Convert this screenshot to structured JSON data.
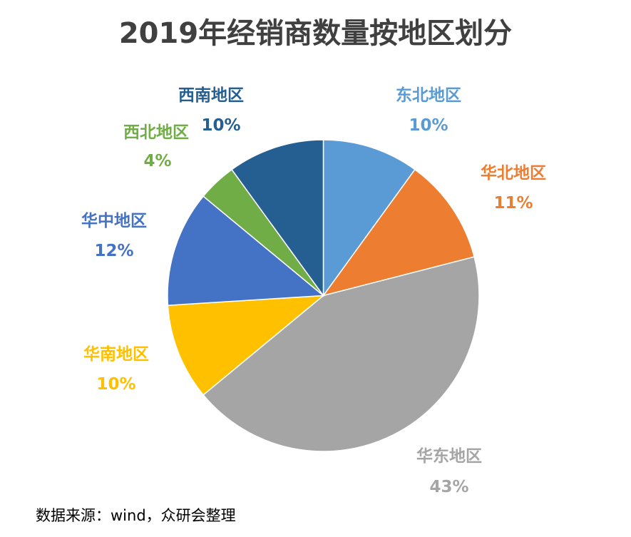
{
  "chart_data": {
    "type": "pie",
    "title": "2019年经销商数量按地区划分",
    "start": "top",
    "direction": "clockwise",
    "slices": [
      {
        "label": "东北地区",
        "value": 10,
        "value_label": "10%",
        "color": "#5B9BD5"
      },
      {
        "label": "华北地区",
        "value": 11,
        "value_label": "11%",
        "color": "#ED7D31"
      },
      {
        "label": "华东地区",
        "value": 43,
        "value_label": "43%",
        "color": "#A5A5A5"
      },
      {
        "label": "华南地区",
        "value": 10,
        "value_label": "10%",
        "color": "#FFC000"
      },
      {
        "label": "华中地区",
        "value": 12,
        "value_label": "12%",
        "color": "#4472C4"
      },
      {
        "label": "西北地区",
        "value": 4,
        "value_label": "4%",
        "color": "#70AD47"
      },
      {
        "label": "西南地区",
        "value": 10,
        "value_label": "10%",
        "color": "#255E91"
      }
    ]
  },
  "source": "数据来源：wind，众研会整理"
}
